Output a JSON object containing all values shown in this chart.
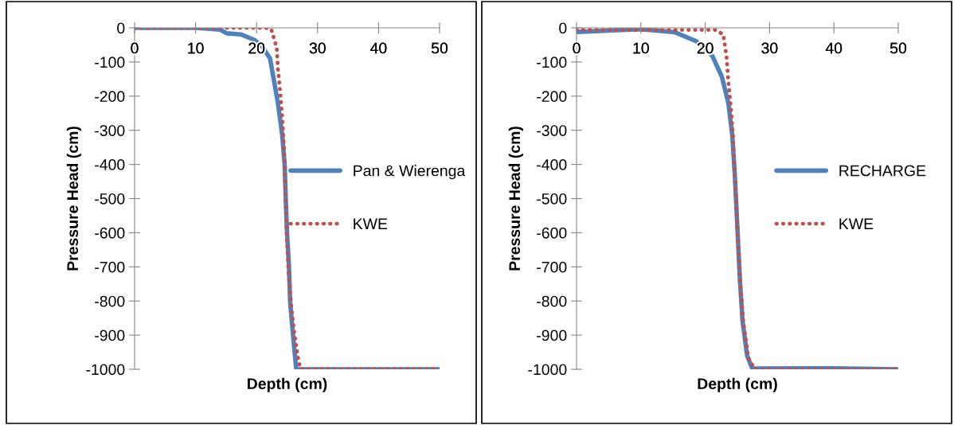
{
  "chart_data": [
    {
      "type": "line",
      "xlabel": "Depth (cm)",
      "ylabel": "Pressure Head (cm)",
      "xlim": [
        0,
        50
      ],
      "xticks": [
        0,
        10,
        20,
        30,
        40,
        50
      ],
      "ylim": [
        -1000,
        0
      ],
      "yticks": [
        -1000,
        -900,
        -800,
        -700,
        -600,
        -500,
        -400,
        -300,
        -200,
        -100,
        0
      ],
      "grid": false,
      "legend": "right",
      "marker": "none",
      "series": [
        {
          "name": "Pan & Wierenga",
          "color": "#4f81bd",
          "line_style": "solid",
          "x": [
            0,
            10,
            14.0,
            15.1,
            17.4,
            19.6,
            20.9,
            22.2,
            22.9,
            23.5,
            24.2,
            24.6,
            24.8,
            25.0,
            25.3,
            25.5,
            25.8,
            26.5,
            50
          ],
          "values": [
            0,
            0,
            -5,
            -16,
            -19,
            -35,
            -54,
            -89,
            -159,
            -221,
            -314,
            -400,
            -509,
            -602,
            -695,
            -801,
            -866,
            -1000,
            -1000
          ]
        },
        {
          "name": "KWE",
          "color": "#c0504d",
          "line_style": "dotted",
          "x": [
            0,
            21.5,
            22.4,
            23.3,
            23.5,
            23.8,
            24.2,
            24.5,
            24.7,
            24.9,
            25.2,
            25.7,
            26.2,
            26.8,
            27.2,
            50
          ],
          "values": [
            0,
            0,
            -4,
            -58,
            -120,
            -175,
            -260,
            -353,
            -470,
            -586,
            -703,
            -819,
            -897,
            -967,
            -1000,
            -1000
          ]
        }
      ]
    },
    {
      "type": "line",
      "xlabel": "Depth (cm)",
      "ylabel": "Pressure Head (cm)",
      "xlim": [
        0,
        50
      ],
      "xticks": [
        0,
        10,
        20,
        30,
        40,
        50
      ],
      "ylim": [
        -1000,
        0
      ],
      "yticks": [
        -1000,
        -900,
        -800,
        -700,
        -600,
        -500,
        -400,
        -300,
        -200,
        -100,
        0
      ],
      "grid": false,
      "legend": "right",
      "marker": "none",
      "series": [
        {
          "name": "RECHARGE",
          "color": "#4f81bd",
          "line_style": "solid",
          "x": [
            0,
            10,
            15.3,
            18.6,
            21.1,
            22.6,
            23.6,
            24.2,
            24.6,
            25.0,
            25.4,
            25.8,
            26.5,
            27.3,
            40,
            50
          ],
          "values": [
            -12,
            -4,
            -13,
            -39,
            -82,
            -144,
            -221,
            -314,
            -431,
            -586,
            -741,
            -858,
            -959,
            -998,
            -997,
            -1000
          ]
        },
        {
          "name": "KWE",
          "color": "#c0504d",
          "line_style": "dotted",
          "x": [
            0,
            21.5,
            22.8,
            23.3,
            23.6,
            24.0,
            24.3,
            24.6,
            25.0,
            25.4,
            25.9,
            26.7,
            27.7,
            50
          ],
          "values": [
            -6,
            -6,
            -19,
            -82,
            -159,
            -237,
            -314,
            -431,
            -586,
            -741,
            -858,
            -967,
            -1000,
            -1000
          ]
        }
      ]
    }
  ]
}
